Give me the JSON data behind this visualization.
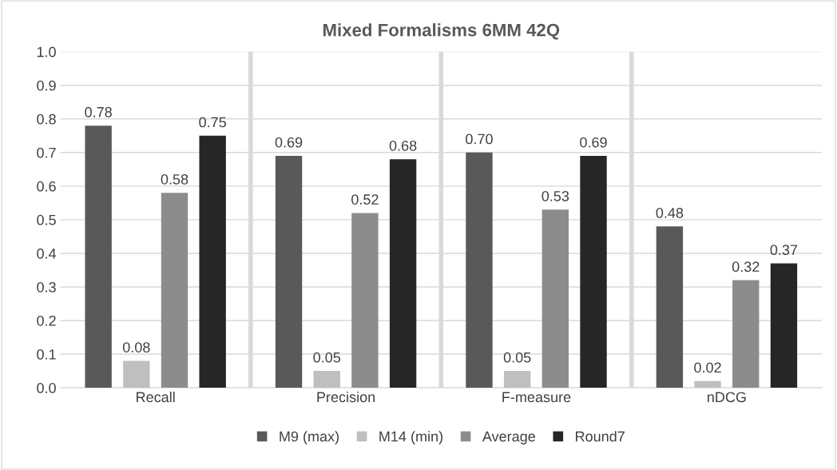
{
  "chart_data": {
    "type": "bar",
    "title": "Mixed Formalisms 6MM 42Q",
    "categories": [
      "Recall",
      "Precision",
      "F-measure",
      "nDCG"
    ],
    "series": [
      {
        "name": "M9 (max)",
        "color": "#595959",
        "values": [
          0.78,
          0.69,
          0.7,
          0.48
        ],
        "value_labels": [
          "0.78",
          "0.69",
          "0.70",
          "0.48"
        ]
      },
      {
        "name": "M14 (min)",
        "color": "#bfbfbf",
        "values": [
          0.08,
          0.05,
          0.05,
          0.02
        ],
        "value_labels": [
          "0.08",
          "0.05",
          "0.05",
          "0.02"
        ]
      },
      {
        "name": "Average",
        "color": "#8c8c8c",
        "values": [
          0.58,
          0.52,
          0.53,
          0.32
        ],
        "value_labels": [
          "0.58",
          "0.52",
          "0.53",
          "0.32"
        ]
      },
      {
        "name": "Round7",
        "color": "#262626",
        "values": [
          0.75,
          0.68,
          0.69,
          0.37
        ],
        "value_labels": [
          "0.75",
          "0.68",
          "0.69",
          "0.37"
        ]
      }
    ],
    "ylim": [
      0,
      1
    ],
    "yticks": [
      {
        "value": 0,
        "label": "0.0"
      },
      0.1,
      0.2,
      0.3,
      0.4,
      0.5,
      0.6,
      0.7,
      0.8,
      0.9,
      {
        "value": 1,
        "label": "1.0"
      }
    ],
    "grid": true,
    "legend": "bottom"
  }
}
